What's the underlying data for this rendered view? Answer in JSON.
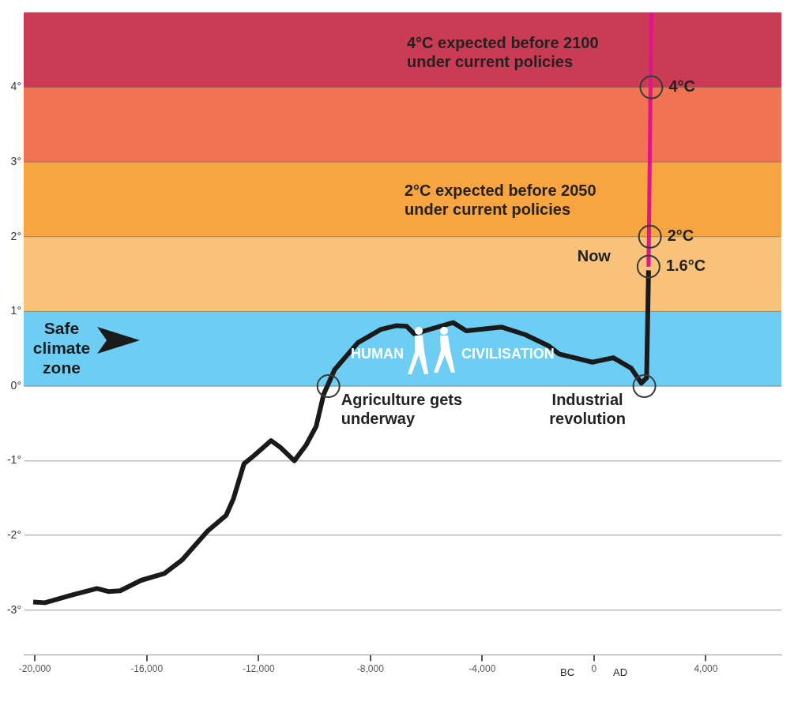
{
  "chart_data": {
    "type": "line",
    "xlim": [
      -20400,
      6700
    ],
    "ylim": [
      -3.6,
      5
    ],
    "grid": "y",
    "marker": "none",
    "line_style": "solid",
    "xticks": [
      {
        "value": -20000,
        "label": "-20,000"
      },
      {
        "value": -16000,
        "label": "-16,000"
      },
      {
        "value": -12000,
        "label": "-12,000"
      },
      {
        "value": -8000,
        "label": "-8,000"
      },
      {
        "value": -4000,
        "label": "-4,000"
      },
      0,
      {
        "value": 4000,
        "label": "4,000"
      }
    ],
    "yticks": [
      {
        "value": -3,
        "label": "-3°"
      },
      {
        "value": -2,
        "label": "-2°"
      },
      {
        "value": -1,
        "label": "-1°"
      },
      {
        "value": 0,
        "label": "0°"
      },
      {
        "value": 1,
        "label": "1°"
      },
      {
        "value": 2,
        "label": "2°"
      },
      {
        "value": 3,
        "label": "3°"
      },
      {
        "value": 4,
        "label": "4°"
      },
      {
        "value": 5,
        "label": null
      }
    ],
    "series": [
      {
        "color": "#1a1a1a",
        "x": [
          -20060,
          -19640,
          -18700,
          -17780,
          -17370,
          -16950,
          -16200,
          -15370,
          -14740,
          -13820,
          -13160,
          -12900,
          -12520,
          -12160,
          -11550,
          -11220,
          -10720,
          -10300,
          -9940,
          -9670,
          -9280,
          -8450,
          -7620,
          -7060,
          -6700,
          -6430,
          -5680,
          -5040,
          -4570,
          -3300,
          -2470,
          -1630,
          -1250,
          -60,
          690,
          1330,
          1690,
          1880,
          1950
        ],
        "values": [
          -2.89,
          -2.9,
          -2.8,
          -2.71,
          -2.75,
          -2.74,
          -2.6,
          -2.51,
          -2.33,
          -1.94,
          -1.73,
          -1.51,
          -1.04,
          -0.93,
          -0.73,
          -0.82,
          -1.0,
          -0.79,
          -0.54,
          -0.11,
          0.22,
          0.58,
          0.76,
          0.81,
          0.8,
          0.7,
          0.78,
          0.85,
          0.74,
          0.79,
          0.69,
          0.54,
          0.43,
          0.32,
          0.38,
          0.24,
          0.04,
          0.11,
          1.55
        ]
      },
      {
        "color": "#e0158c",
        "x": [
          1950,
          2050
        ],
        "values": [
          1.6,
          5
        ]
      },
      {
        "type": "scatter",
        "marker": "circle",
        "color": "#3a3a3a",
        "x": [
          -9500,
          1800,
          1950,
          2000,
          2050
        ],
        "values": [
          0,
          0,
          1.6,
          2,
          4
        ]
      }
    ],
    "bands": [
      {
        "axis": "y",
        "from": 0,
        "to": 1,
        "label": "Safe climate zone",
        "color": "#6dcdf2"
      },
      {
        "axis": "y",
        "from": 1,
        "to": 2,
        "color": "#f8c27a"
      },
      {
        "axis": "y",
        "from": 2,
        "to": 3,
        "color": "#f7a442"
      },
      {
        "axis": "y",
        "from": 3,
        "to": 4,
        "color": "#f07352"
      },
      {
        "axis": "y",
        "from": 4,
        "to": 5,
        "color": "#c93c54"
      }
    ],
    "annotations": [
      {
        "text": "4°C",
        "x": 2050,
        "y": 4
      },
      {
        "text": "2°C",
        "x": 2000,
        "y": 2
      },
      {
        "text": "1.6°C",
        "x": 1950,
        "y": 1.6
      },
      {
        "text": "Now",
        "x": 1950,
        "y": 1.6
      },
      "4°C expected before 2100\nunder current policies",
      "2°C expected before 2050\nunder current policies",
      {
        "text": "Agriculture gets\nunderway",
        "x": -9500,
        "y": 0
      },
      {
        "text": "Industrial\nrevolution",
        "x": 1800,
        "y": 0
      },
      "HUMAN CIVILISATION",
      "BC",
      "AD"
    ]
  }
}
